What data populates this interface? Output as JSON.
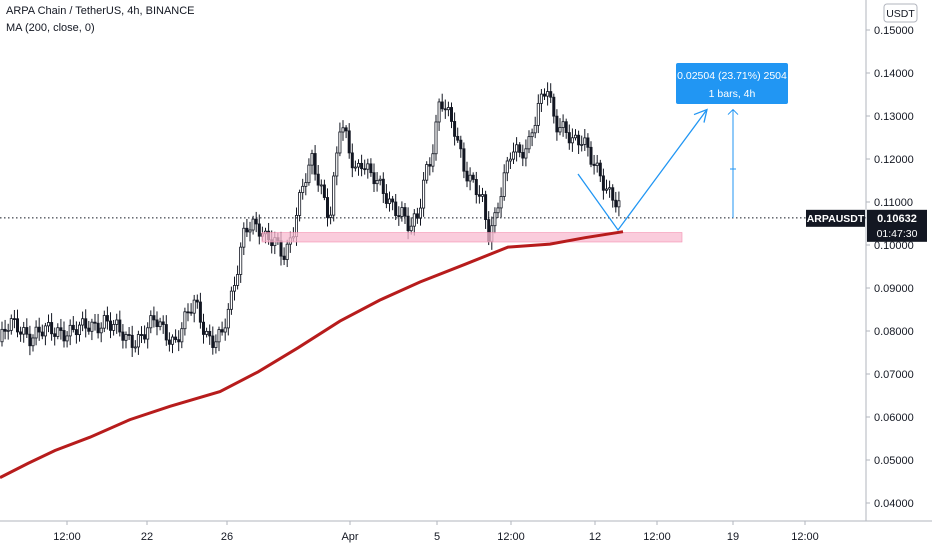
{
  "header": {
    "symbol_line": "ARPA Chain / TetherUS, 4h, BINANCE",
    "indicator_line": "MA (200, close, 0)"
  },
  "price_axis": {
    "currency_label": "USDT",
    "ticks": [
      "0.15000",
      "0.14000",
      "0.13000",
      "0.12000",
      "0.11000",
      "0.10000",
      "0.09000",
      "0.08000",
      "0.07000",
      "0.06000",
      "0.05000",
      "0.04000"
    ]
  },
  "time_axis": {
    "ticks": [
      "12:00",
      "22",
      "26",
      "Apr",
      "5",
      "12:00",
      "12",
      "12:00",
      "19",
      "12:00"
    ]
  },
  "last_price": {
    "ticker": "ARPAUSDT",
    "price": "0.10632",
    "countdown": "01:47:30"
  },
  "measure_tool": {
    "line1": "0.02504 (23.71%) 2504",
    "line2": "1 bars, 4h"
  },
  "colors": {
    "up": "#26a69a",
    "down": "#131722",
    "candle": "#131722",
    "ma": "#b71c1c",
    "zone": "#f8bbd0",
    "projection": "#2196f3",
    "label_bg": "#131722"
  },
  "chart_data": {
    "type": "candlestick",
    "timeframe": "4h",
    "ylim": [
      0.0375,
      0.1535
    ],
    "price_key_levels": {
      "last_price": 0.10632,
      "support_zone": [
        0.1007,
        0.1029
      ],
      "projection_low": 0.1035,
      "projection_target": 0.1315
    },
    "ma_200": [
      [
        0,
        0.0459
      ],
      [
        28,
        0.0492
      ],
      [
        55,
        0.0522
      ],
      [
        90,
        0.0553
      ],
      [
        130,
        0.0594
      ],
      [
        170,
        0.0625
      ],
      [
        220,
        0.0659
      ],
      [
        258,
        0.0705
      ],
      [
        298,
        0.0761
      ],
      [
        340,
        0.0823
      ],
      [
        380,
        0.0872
      ],
      [
        420,
        0.0914
      ],
      [
        465,
        0.0955
      ],
      [
        508,
        0.0995
      ],
      [
        550,
        0.1002
      ],
      [
        585,
        0.1017
      ],
      [
        623,
        0.1031
      ]
    ],
    "price_path": [
      [
        0,
        0.0775
      ],
      [
        10,
        0.0812
      ],
      [
        22,
        0.0808
      ],
      [
        30,
        0.079
      ],
      [
        45,
        0.0795
      ],
      [
        60,
        0.0803
      ],
      [
        80,
        0.08
      ],
      [
        95,
        0.0815
      ],
      [
        105,
        0.083
      ],
      [
        113,
        0.0808
      ],
      [
        125,
        0.078
      ],
      [
        135,
        0.0782
      ],
      [
        145,
        0.08
      ],
      [
        155,
        0.082
      ],
      [
        165,
        0.0795
      ],
      [
        175,
        0.078
      ],
      [
        185,
        0.0825
      ],
      [
        195,
        0.086
      ],
      [
        205,
        0.08
      ],
      [
        212,
        0.0785
      ],
      [
        222,
        0.079
      ],
      [
        230,
        0.085
      ],
      [
        238,
        0.095
      ],
      [
        245,
        0.1055
      ],
      [
        255,
        0.105
      ],
      [
        265,
        0.1005
      ],
      [
        275,
        0.101
      ],
      [
        285,
        0.0985
      ],
      [
        293,
        0.103
      ],
      [
        303,
        0.113
      ],
      [
        312,
        0.12
      ],
      [
        320,
        0.115
      ],
      [
        330,
        0.106
      ],
      [
        340,
        0.127
      ],
      [
        345,
        0.1255
      ],
      [
        355,
        0.118
      ],
      [
        362,
        0.12
      ],
      [
        370,
        0.116
      ],
      [
        380,
        0.113
      ],
      [
        392,
        0.11
      ],
      [
        402,
        0.1075
      ],
      [
        410,
        0.103
      ],
      [
        418,
        0.106
      ],
      [
        425,
        0.117
      ],
      [
        432,
        0.122
      ],
      [
        440,
        0.134
      ],
      [
        447,
        0.13
      ],
      [
        455,
        0.126
      ],
      [
        465,
        0.118
      ],
      [
        473,
        0.115
      ],
      [
        482,
        0.11
      ],
      [
        488,
        0.101
      ],
      [
        495,
        0.106
      ],
      [
        503,
        0.116
      ],
      [
        512,
        0.123
      ],
      [
        520,
        0.12
      ],
      [
        528,
        0.122
      ],
      [
        538,
        0.133
      ],
      [
        547,
        0.138
      ],
      [
        555,
        0.127
      ],
      [
        565,
        0.126
      ],
      [
        573,
        0.125
      ],
      [
        583,
        0.1255
      ],
      [
        590,
        0.12
      ],
      [
        598,
        0.116
      ],
      [
        606,
        0.113
      ],
      [
        614,
        0.112
      ],
      [
        619,
        0.11
      ],
      [
        623,
        0.1063
      ]
    ]
  }
}
